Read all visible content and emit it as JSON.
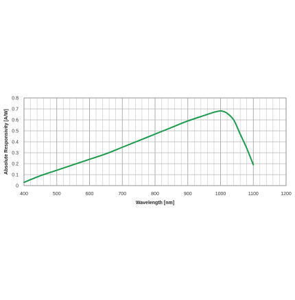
{
  "chart_data": {
    "type": "line",
    "title": "",
    "xlabel": "Wavelength [nm]",
    "ylabel": "Absolute Responsivity [A/W]",
    "xlim": [
      400,
      1200
    ],
    "ylim": [
      0,
      0.8
    ],
    "x_ticks": [
      "400",
      "500",
      "600",
      "700",
      "800",
      "900",
      "1000",
      "1100",
      "1200"
    ],
    "y_ticks": [
      "0",
      "0.1",
      "0.2",
      "0.3",
      "0.4",
      "0.5",
      "0.6",
      "0.7",
      "0.8"
    ],
    "grid": true,
    "legend": "none",
    "series": [
      {
        "color": "#1a9a4a",
        "x": [
          400,
          450,
          500,
          550,
          600,
          650,
          700,
          750,
          800,
          850,
          900,
          950,
          980,
          995,
          1005,
          1020,
          1040,
          1060,
          1080,
          1100
        ],
        "y": [
          0.03,
          0.09,
          0.14,
          0.19,
          0.24,
          0.29,
          0.35,
          0.41,
          0.47,
          0.53,
          0.59,
          0.64,
          0.67,
          0.68,
          0.68,
          0.66,
          0.6,
          0.47,
          0.34,
          0.19
        ]
      }
    ]
  }
}
